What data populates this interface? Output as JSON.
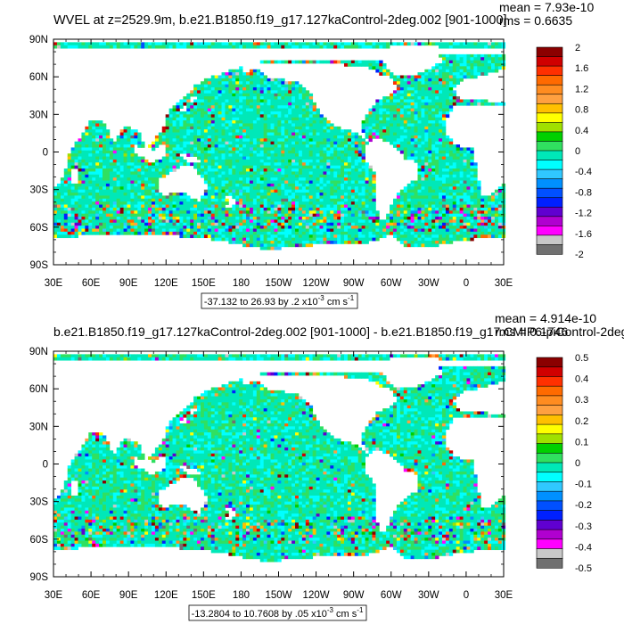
{
  "chart_data": [
    {
      "type": "heatmap",
      "title": "WVEL at z=2529.9m, b.e21.B1850.f19_g17.127kaControl-2deg.002 [901-1000]",
      "stats": [
        "mean = 7.93e-10",
        "rms = 0.6635"
      ],
      "range_label": "-37.132 to 26.93 by .2 x10",
      "range_exp": "-3",
      "range_unit": " cm s",
      "range_unit_exp": "-1",
      "xlim": [
        30,
        390
      ],
      "ylim": [
        -90,
        90
      ],
      "x_ticks": [
        "30E",
        "60E",
        "90E",
        "120E",
        "150E",
        "180",
        "150W",
        "120W",
        "90W",
        "60W",
        "30W",
        "0",
        "30E"
      ],
      "y_ticks": [
        "90N",
        "60N",
        "30N",
        "0",
        "30S",
        "60S",
        "90S"
      ],
      "colorbar_labels": [
        "2",
        "1.6",
        "1.2",
        "0.8",
        "0.4",
        "0",
        "-0.4",
        "-0.8",
        "-1.2",
        "-1.6",
        "-2"
      ],
      "colorbar_levels": [
        2,
        1.6,
        1.2,
        0.8,
        0.4,
        0,
        -0.4,
        -0.8,
        -1.2,
        -1.6,
        -2
      ],
      "palette": [
        "#8b0000",
        "#d00000",
        "#ff3000",
        "#ff6a00",
        "#ff8c20",
        "#ffa040",
        "#ffc000",
        "#ffff00",
        "#a0e000",
        "#00d000",
        "#30e060",
        "#00e8b8",
        "#00ffff",
        "#30c8ff",
        "#0090ff",
        "#0050ff",
        "#0020ff",
        "#6000d0",
        "#b000d0",
        "#ff00ff",
        "#c8c8c8",
        "#707070"
      ],
      "seed": 7
    },
    {
      "type": "heatmap",
      "title": "b.e21.B1850.f19_g17.127kaControl-2deg.002 [901-1000] - b.e21.B1850.f19_g17.CMIP6-piControl-2deg.",
      "stats": [
        "mean = 4.914e-10",
        "rms = 0.1746"
      ],
      "range_label": "-13.2804 to 10.7608 by .05 x10",
      "range_exp": "-3",
      "range_unit": " cm s",
      "range_unit_exp": "-1",
      "xlim": [
        30,
        390
      ],
      "ylim": [
        -90,
        90
      ],
      "x_ticks": [
        "30E",
        "60E",
        "90E",
        "120E",
        "150E",
        "180",
        "150W",
        "120W",
        "90W",
        "60W",
        "30W",
        "0",
        "30E"
      ],
      "y_ticks": [
        "90N",
        "60N",
        "30N",
        "0",
        "30S",
        "60S",
        "90S"
      ],
      "colorbar_labels": [
        "0.5",
        "0.4",
        "0.3",
        "0.2",
        "0.1",
        "0",
        "-0.1",
        "-0.2",
        "-0.3",
        "-0.4",
        "-0.5"
      ],
      "colorbar_levels": [
        0.5,
        0.4,
        0.3,
        0.2,
        0.1,
        0,
        -0.1,
        -0.2,
        -0.3,
        -0.4,
        -0.5
      ],
      "palette": [
        "#8b0000",
        "#d00000",
        "#ff3000",
        "#ff6a00",
        "#ff8c20",
        "#ffa040",
        "#ffc000",
        "#ffff00",
        "#a0e000",
        "#00d000",
        "#30e060",
        "#00e8b8",
        "#00ffff",
        "#30c8ff",
        "#0090ff",
        "#0050ff",
        "#0020ff",
        "#6000d0",
        "#b000d0",
        "#ff00ff",
        "#c8c8c8",
        "#707070"
      ],
      "seed": 19
    }
  ]
}
